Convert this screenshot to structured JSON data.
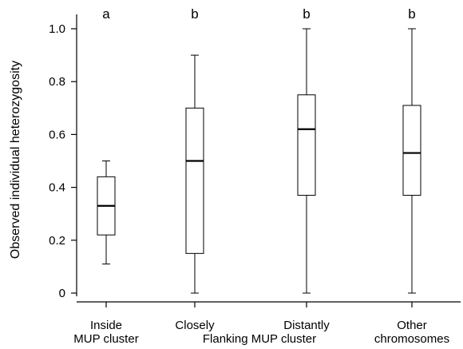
{
  "chart_data": {
    "type": "boxplot",
    "ylabel": "Observed individual heterozygosity",
    "xlabel": "",
    "ylim": [
      0,
      1.0
    ],
    "yticks": [
      0,
      0.2,
      0.4,
      0.6,
      0.8,
      1.0
    ],
    "ytick_labels": [
      "0",
      "0.2",
      "0.4",
      "0.6",
      "0.8",
      "1.0"
    ],
    "grid": false,
    "group_label": "Flanking MUP cluster",
    "categories": [
      {
        "label_lines": [
          "Inside",
          "MUP cluster"
        ],
        "letter": "a",
        "min": 0.11,
        "q1": 0.22,
        "median": 0.33,
        "q3": 0.44,
        "max": 0.5
      },
      {
        "label_lines": [
          "Closely",
          ""
        ],
        "letter": "b",
        "min": 0.0,
        "q1": 0.15,
        "median": 0.5,
        "q3": 0.7,
        "max": 0.9
      },
      {
        "label_lines": [
          "Distantly",
          ""
        ],
        "letter": "b",
        "min": 0.0,
        "q1": 0.37,
        "median": 0.62,
        "q3": 0.75,
        "max": 1.0
      },
      {
        "label_lines": [
          "Other",
          "chromosomes"
        ],
        "letter": "b",
        "min": 0.0,
        "q1": 0.37,
        "median": 0.53,
        "q3": 0.71,
        "max": 1.0
      }
    ]
  }
}
